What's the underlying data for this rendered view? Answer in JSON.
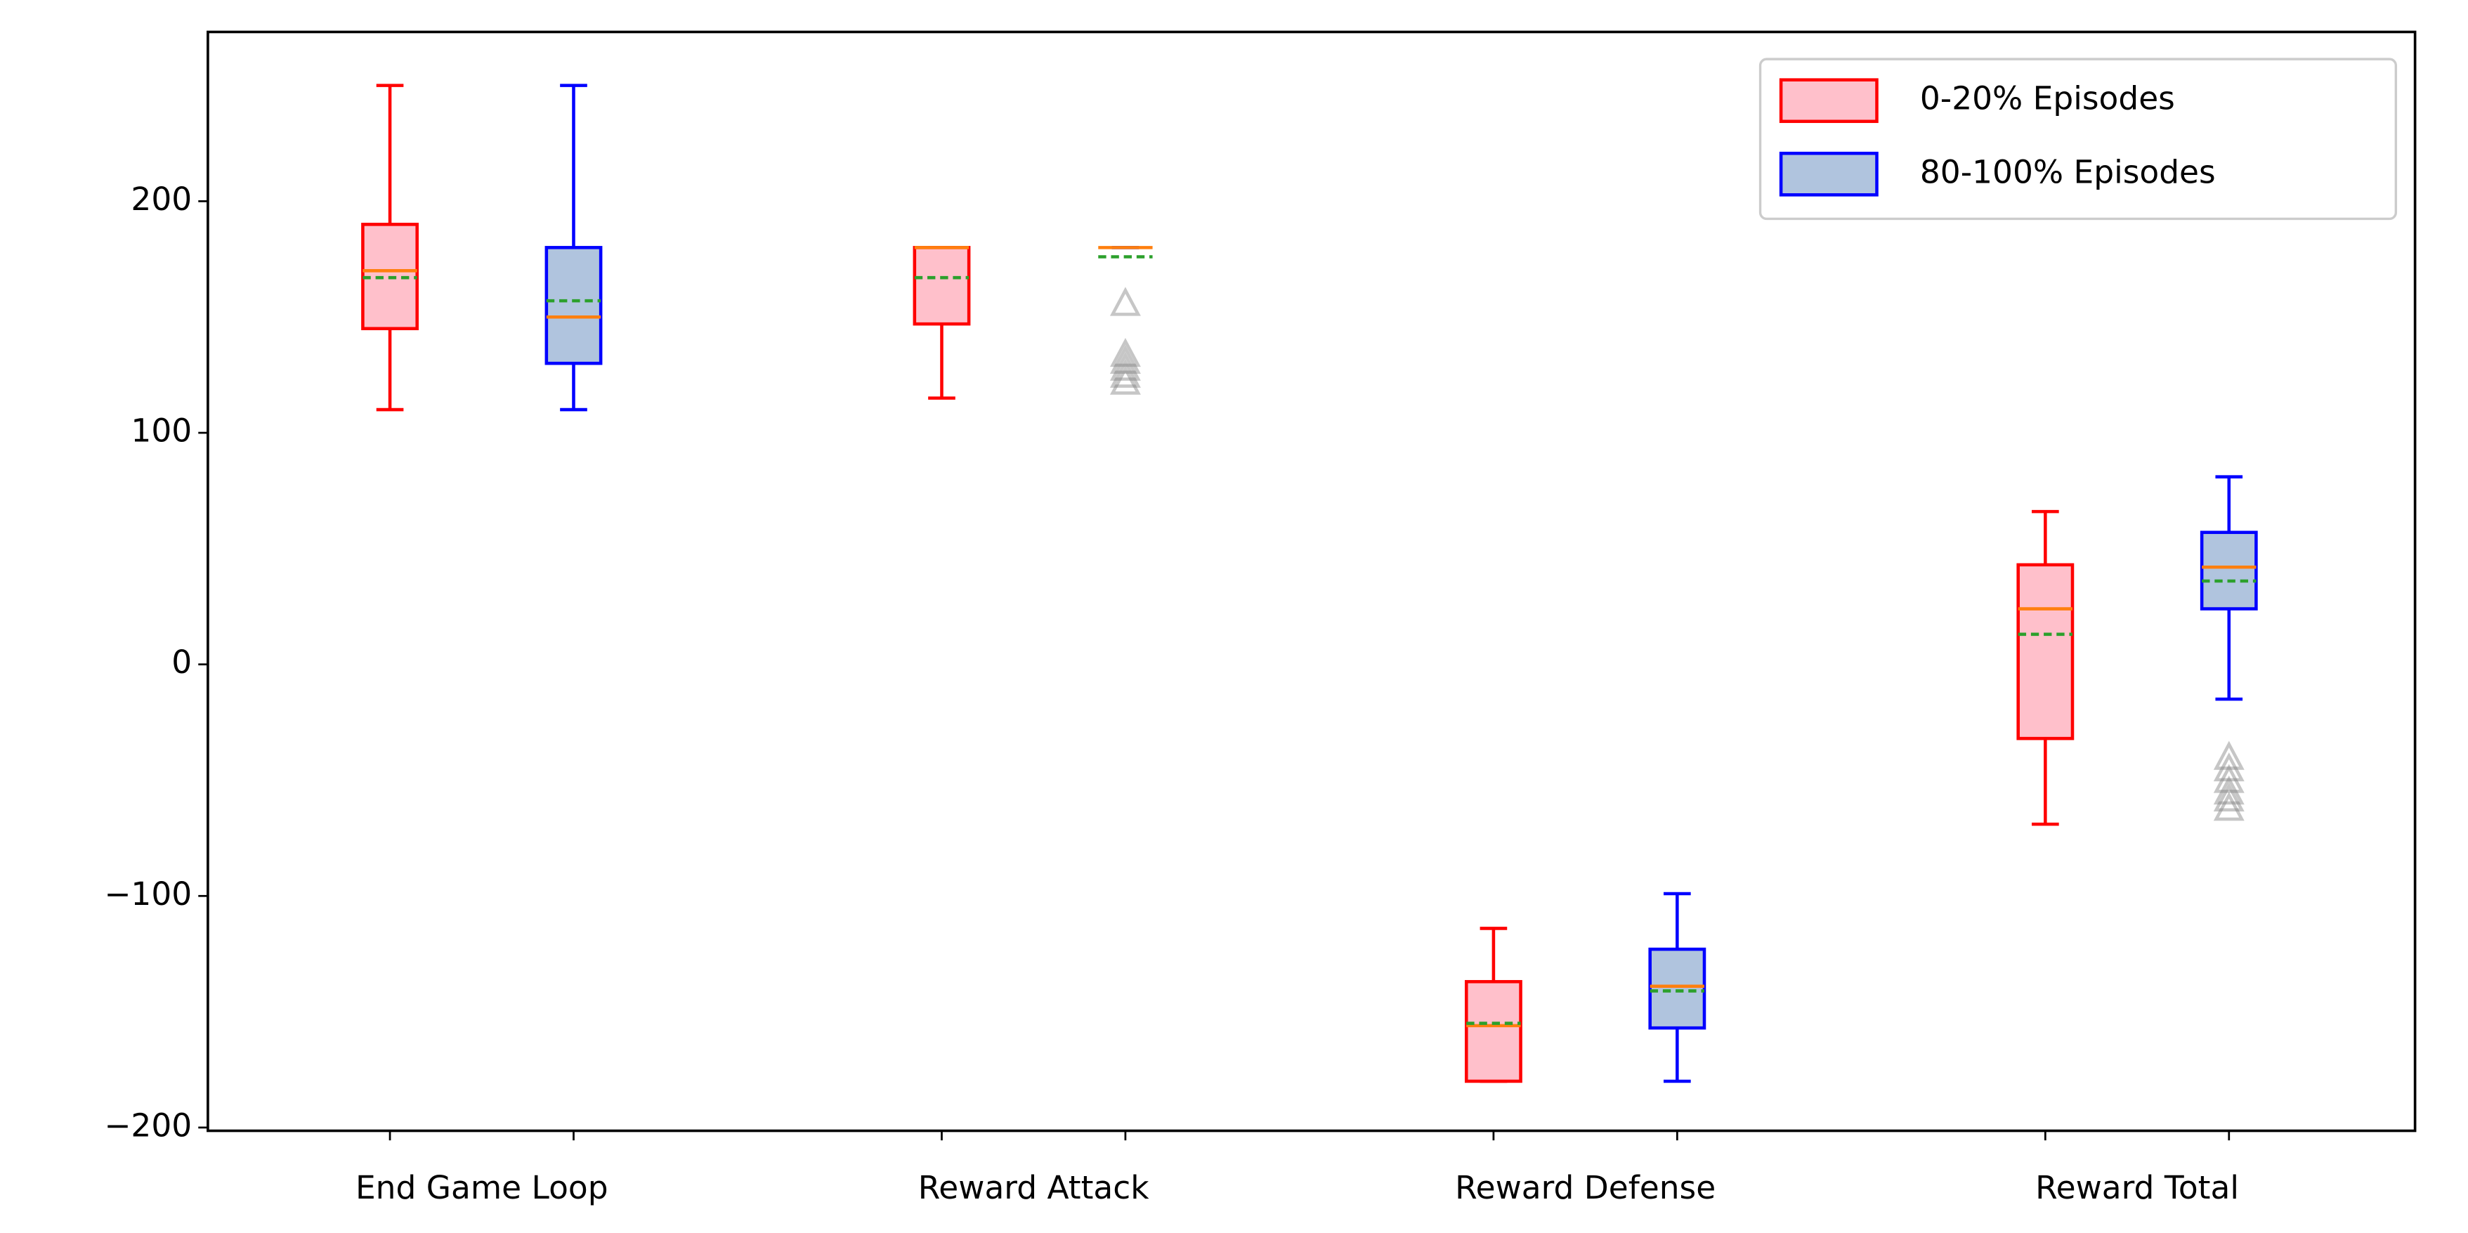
{
  "chart_data": {
    "type": "box",
    "categories": [
      "End Game Loop",
      "Reward Attack",
      "Reward Defense",
      "Reward Total"
    ],
    "ylim": [
      -201.4,
      273.1
    ],
    "yticks": [
      {
        "value": -200,
        "label": "−200"
      },
      {
        "value": -100,
        "label": "−100"
      },
      0,
      100,
      200
    ],
    "legend": "upper right",
    "median_color": "#ff7f0e",
    "mean_color": "#2ca02c",
    "flier_color": "#808080",
    "series": [
      {
        "name": "0-20% Episodes",
        "color": "#ff0000",
        "fill": "#ffc0cb",
        "stats": [
          {
            "whislo": 110,
            "q1": 145,
            "med": 170,
            "q3": 190,
            "whishi": 250,
            "mean": 167,
            "fliers": []
          },
          {
            "whislo": 115,
            "q1": 147,
            "med": 180,
            "q3": 180,
            "whishi": 180,
            "mean": 167,
            "fliers": []
          },
          {
            "whislo": -180,
            "q1": -180,
            "med": -156,
            "q3": -137,
            "whishi": -114,
            "mean": -155,
            "fliers": []
          },
          {
            "whislo": -69,
            "q1": -32,
            "med": 24,
            "q3": 43,
            "whishi": 66,
            "mean": 13,
            "fliers": []
          }
        ]
      },
      {
        "name": "80-100% Episodes",
        "color": "#0000ff",
        "fill": "#b0c4de",
        "stats": [
          {
            "whislo": 110,
            "q1": 130,
            "med": 150,
            "q3": 180,
            "whishi": 250,
            "mean": 157,
            "fliers": []
          },
          {
            "whislo": 180,
            "q1": 180,
            "med": 180,
            "q3": 180,
            "whishi": 180,
            "mean": 176,
            "fliers": [
              156,
              134,
              131,
              128,
              125,
              122
            ]
          },
          {
            "whislo": -180,
            "q1": -157,
            "med": -139,
            "q3": -123,
            "whishi": -99,
            "mean": -141,
            "fliers": []
          },
          {
            "whislo": -15,
            "q1": 24,
            "med": 42,
            "q3": 57,
            "whishi": 81,
            "mean": 36,
            "fliers": [
              -40,
              -45,
              -50,
              -55,
              -58,
              -62
            ]
          }
        ]
      }
    ]
  }
}
